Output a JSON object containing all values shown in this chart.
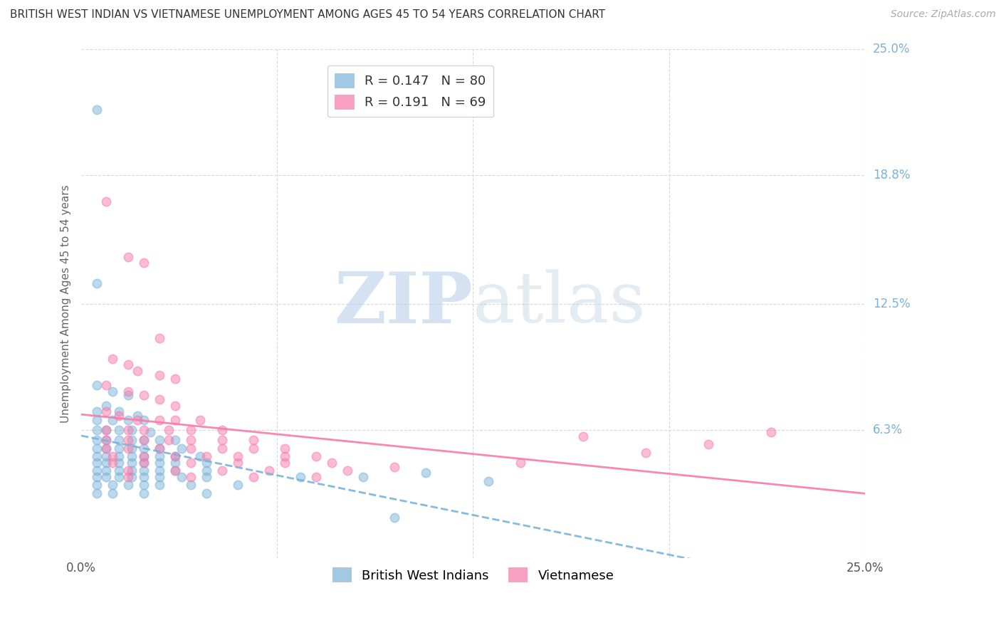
{
  "title": "BRITISH WEST INDIAN VS VIETNAMESE UNEMPLOYMENT AMONG AGES 45 TO 54 YEARS CORRELATION CHART",
  "source": "Source: ZipAtlas.com",
  "ylabel": "Unemployment Among Ages 45 to 54 years",
  "xlim": [
    0.0,
    0.25
  ],
  "ylim": [
    0.0,
    0.25
  ],
  "y_tick_values": [
    0.063,
    0.125,
    0.188,
    0.25
  ],
  "y_tick_labels": [
    "6.3%",
    "12.5%",
    "18.8%",
    "25.0%"
  ],
  "bwi_color": "#7ab3d9",
  "viet_color": "#f87aaa",
  "background_color": "#ffffff",
  "grid_color": "#d8d8d8",
  "right_label_color": "#7ab3d9",
  "bwi_scatter": [
    [
      0.005,
      0.22
    ],
    [
      0.005,
      0.135
    ],
    [
      0.005,
      0.085
    ],
    [
      0.01,
      0.082
    ],
    [
      0.015,
      0.08
    ],
    [
      0.008,
      0.075
    ],
    [
      0.005,
      0.072
    ],
    [
      0.012,
      0.072
    ],
    [
      0.018,
      0.07
    ],
    [
      0.005,
      0.068
    ],
    [
      0.01,
      0.068
    ],
    [
      0.015,
      0.068
    ],
    [
      0.02,
      0.068
    ],
    [
      0.005,
      0.063
    ],
    [
      0.008,
      0.063
    ],
    [
      0.012,
      0.063
    ],
    [
      0.016,
      0.063
    ],
    [
      0.022,
      0.062
    ],
    [
      0.005,
      0.058
    ],
    [
      0.008,
      0.058
    ],
    [
      0.012,
      0.058
    ],
    [
      0.016,
      0.058
    ],
    [
      0.02,
      0.058
    ],
    [
      0.025,
      0.058
    ],
    [
      0.03,
      0.058
    ],
    [
      0.005,
      0.054
    ],
    [
      0.008,
      0.054
    ],
    [
      0.012,
      0.054
    ],
    [
      0.016,
      0.054
    ],
    [
      0.02,
      0.054
    ],
    [
      0.025,
      0.054
    ],
    [
      0.032,
      0.054
    ],
    [
      0.005,
      0.05
    ],
    [
      0.008,
      0.05
    ],
    [
      0.012,
      0.05
    ],
    [
      0.016,
      0.05
    ],
    [
      0.02,
      0.05
    ],
    [
      0.025,
      0.05
    ],
    [
      0.03,
      0.05
    ],
    [
      0.038,
      0.05
    ],
    [
      0.005,
      0.047
    ],
    [
      0.008,
      0.047
    ],
    [
      0.012,
      0.047
    ],
    [
      0.016,
      0.047
    ],
    [
      0.02,
      0.047
    ],
    [
      0.025,
      0.047
    ],
    [
      0.03,
      0.047
    ],
    [
      0.04,
      0.047
    ],
    [
      0.005,
      0.043
    ],
    [
      0.008,
      0.043
    ],
    [
      0.012,
      0.043
    ],
    [
      0.016,
      0.043
    ],
    [
      0.02,
      0.043
    ],
    [
      0.025,
      0.043
    ],
    [
      0.03,
      0.043
    ],
    [
      0.04,
      0.043
    ],
    [
      0.005,
      0.04
    ],
    [
      0.008,
      0.04
    ],
    [
      0.012,
      0.04
    ],
    [
      0.016,
      0.04
    ],
    [
      0.02,
      0.04
    ],
    [
      0.025,
      0.04
    ],
    [
      0.032,
      0.04
    ],
    [
      0.04,
      0.04
    ],
    [
      0.005,
      0.036
    ],
    [
      0.01,
      0.036
    ],
    [
      0.015,
      0.036
    ],
    [
      0.02,
      0.036
    ],
    [
      0.025,
      0.036
    ],
    [
      0.035,
      0.036
    ],
    [
      0.05,
      0.036
    ],
    [
      0.07,
      0.04
    ],
    [
      0.005,
      0.032
    ],
    [
      0.01,
      0.032
    ],
    [
      0.02,
      0.032
    ],
    [
      0.04,
      0.032
    ],
    [
      0.09,
      0.04
    ],
    [
      0.11,
      0.042
    ],
    [
      0.13,
      0.038
    ],
    [
      0.1,
      0.02
    ]
  ],
  "viet_scatter": [
    [
      0.008,
      0.175
    ],
    [
      0.015,
      0.148
    ],
    [
      0.02,
      0.145
    ],
    [
      0.025,
      0.108
    ],
    [
      0.01,
      0.098
    ],
    [
      0.015,
      0.095
    ],
    [
      0.018,
      0.092
    ],
    [
      0.025,
      0.09
    ],
    [
      0.03,
      0.088
    ],
    [
      0.008,
      0.085
    ],
    [
      0.015,
      0.082
    ],
    [
      0.02,
      0.08
    ],
    [
      0.025,
      0.078
    ],
    [
      0.03,
      0.075
    ],
    [
      0.008,
      0.072
    ],
    [
      0.012,
      0.07
    ],
    [
      0.018,
      0.068
    ],
    [
      0.025,
      0.068
    ],
    [
      0.03,
      0.068
    ],
    [
      0.038,
      0.068
    ],
    [
      0.008,
      0.063
    ],
    [
      0.015,
      0.063
    ],
    [
      0.02,
      0.063
    ],
    [
      0.028,
      0.063
    ],
    [
      0.035,
      0.063
    ],
    [
      0.045,
      0.063
    ],
    [
      0.008,
      0.058
    ],
    [
      0.015,
      0.058
    ],
    [
      0.02,
      0.058
    ],
    [
      0.028,
      0.058
    ],
    [
      0.035,
      0.058
    ],
    [
      0.045,
      0.058
    ],
    [
      0.055,
      0.058
    ],
    [
      0.008,
      0.054
    ],
    [
      0.015,
      0.054
    ],
    [
      0.025,
      0.054
    ],
    [
      0.035,
      0.054
    ],
    [
      0.045,
      0.054
    ],
    [
      0.055,
      0.054
    ],
    [
      0.065,
      0.054
    ],
    [
      0.01,
      0.05
    ],
    [
      0.02,
      0.05
    ],
    [
      0.03,
      0.05
    ],
    [
      0.04,
      0.05
    ],
    [
      0.05,
      0.05
    ],
    [
      0.065,
      0.05
    ],
    [
      0.075,
      0.05
    ],
    [
      0.01,
      0.047
    ],
    [
      0.02,
      0.047
    ],
    [
      0.035,
      0.047
    ],
    [
      0.05,
      0.047
    ],
    [
      0.065,
      0.047
    ],
    [
      0.08,
      0.047
    ],
    [
      0.015,
      0.043
    ],
    [
      0.03,
      0.043
    ],
    [
      0.045,
      0.043
    ],
    [
      0.06,
      0.043
    ],
    [
      0.085,
      0.043
    ],
    [
      0.1,
      0.045
    ],
    [
      0.015,
      0.04
    ],
    [
      0.035,
      0.04
    ],
    [
      0.055,
      0.04
    ],
    [
      0.075,
      0.04
    ],
    [
      0.14,
      0.047
    ],
    [
      0.16,
      0.06
    ],
    [
      0.18,
      0.052
    ],
    [
      0.2,
      0.056
    ],
    [
      0.22,
      0.062
    ]
  ]
}
